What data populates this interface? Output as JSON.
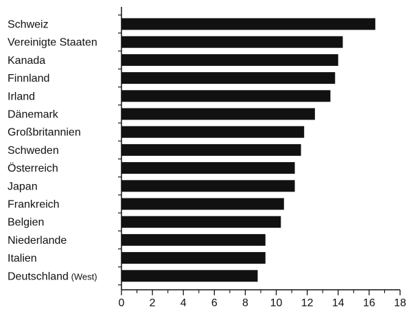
{
  "chart_data": {
    "type": "bar",
    "orientation": "horizontal",
    "title": "",
    "xlabel": "",
    "ylabel": "",
    "categories": [
      "Schweiz",
      "Vereinigte Staaten",
      "Kanada",
      "Finnland",
      "Irland",
      "Dänemark",
      "Großbritannien",
      "Schweden",
      "Österreich",
      "Japan",
      "Frankreich",
      "Belgien",
      "Niederlande",
      "Italien",
      "Deutschland"
    ],
    "category_suffix": {
      "Deutschland": " (West)"
    },
    "values": [
      16.4,
      14.3,
      14.0,
      13.8,
      13.5,
      12.5,
      11.8,
      11.6,
      11.2,
      11.2,
      10.5,
      10.3,
      9.3,
      9.3,
      8.8
    ],
    "xlim": [
      0,
      18
    ],
    "xticks": [
      0,
      2,
      4,
      6,
      8,
      10,
      12,
      14,
      16,
      18
    ],
    "minor_tick_step": 1,
    "grid": false,
    "legend": "none",
    "bar_color": "#111111",
    "axis_color": "#111111"
  }
}
